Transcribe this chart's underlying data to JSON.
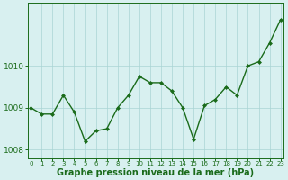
{
  "x": [
    0,
    1,
    2,
    3,
    4,
    5,
    6,
    7,
    8,
    9,
    10,
    11,
    12,
    13,
    14,
    15,
    16,
    17,
    18,
    19,
    20,
    21,
    22,
    23
  ],
  "y": [
    1009.0,
    1008.85,
    1008.85,
    1009.3,
    1008.9,
    1008.2,
    1008.45,
    1008.5,
    1009.0,
    1009.3,
    1009.75,
    1009.6,
    1009.6,
    1009.4,
    1009.0,
    1008.25,
    1009.05,
    1009.2,
    1009.5,
    1009.3,
    1010.0,
    1010.1,
    1010.55,
    1011.1
  ],
  "line_color": "#1a6b1a",
  "marker": "D",
  "marker_size": 2.0,
  "bg_color": "#d8f0f0",
  "plot_bg_color": "#d8f0f0",
  "grid_color": "#aad4d4",
  "tick_color": "#1a6b1a",
  "label_color": "#1a6b1a",
  "xlabel": "Graphe pression niveau de la mer (hPa)",
  "xlabel_fontsize": 7,
  "ylabel_ticks": [
    1008,
    1009,
    1010
  ],
  "ylim": [
    1007.8,
    1011.5
  ],
  "xlim": [
    -0.3,
    23.3
  ],
  "xtick_labels": [
    "0",
    "1",
    "2",
    "3",
    "4",
    "5",
    "6",
    "7",
    "8",
    "9",
    "10",
    "11",
    "12",
    "13",
    "14",
    "15",
    "16",
    "17",
    "18",
    "19",
    "20",
    "21",
    "22",
    "23"
  ],
  "spine_color": "#1a6b1a",
  "line_width": 1.0
}
